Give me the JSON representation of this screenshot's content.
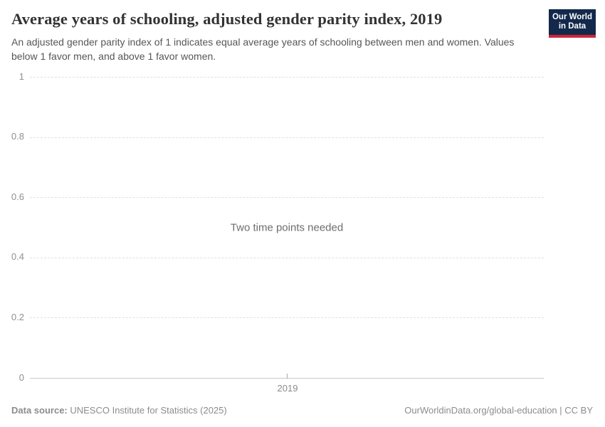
{
  "header": {
    "title": "Average years of schooling, adjusted gender parity index, 2019",
    "subtitle": "An adjusted gender parity index of 1 indicates equal average years of schooling between men and women. Values below 1 favor men, and above 1 favor women.",
    "logo": {
      "line1": "Our World",
      "line2": "in Data",
      "bg_color": "#12294b",
      "accent_color": "#cf2437"
    }
  },
  "chart_data": {
    "type": "line",
    "title": "Average years of schooling, adjusted gender parity index, 2019",
    "xlabel": "",
    "ylabel": "",
    "ylim": [
      0,
      1
    ],
    "series": [],
    "empty_state_message": "Two time points needed",
    "grid": "horizontal-dashed",
    "legend": "none",
    "y_ticks": [
      {
        "value": 0,
        "label": "0"
      },
      {
        "value": 0.2,
        "label": "0.2"
      },
      {
        "value": 0.4,
        "label": "0.4"
      },
      {
        "value": 0.6,
        "label": "0.6"
      },
      {
        "value": 0.8,
        "label": "0.8"
      },
      {
        "value": 1,
        "label": "1"
      }
    ],
    "x_ticks": [
      {
        "label": "2019",
        "position": 0.5
      }
    ],
    "colors": {
      "gridline": "#e0e0e0",
      "axis": "#c9c9c9",
      "tick_label": "#8f8f8f"
    }
  },
  "footer": {
    "source_label": "Data source:",
    "source_value": " UNESCO Institute for Statistics (2025)",
    "right_text": "OurWorldinData.org/global-education | CC BY"
  }
}
